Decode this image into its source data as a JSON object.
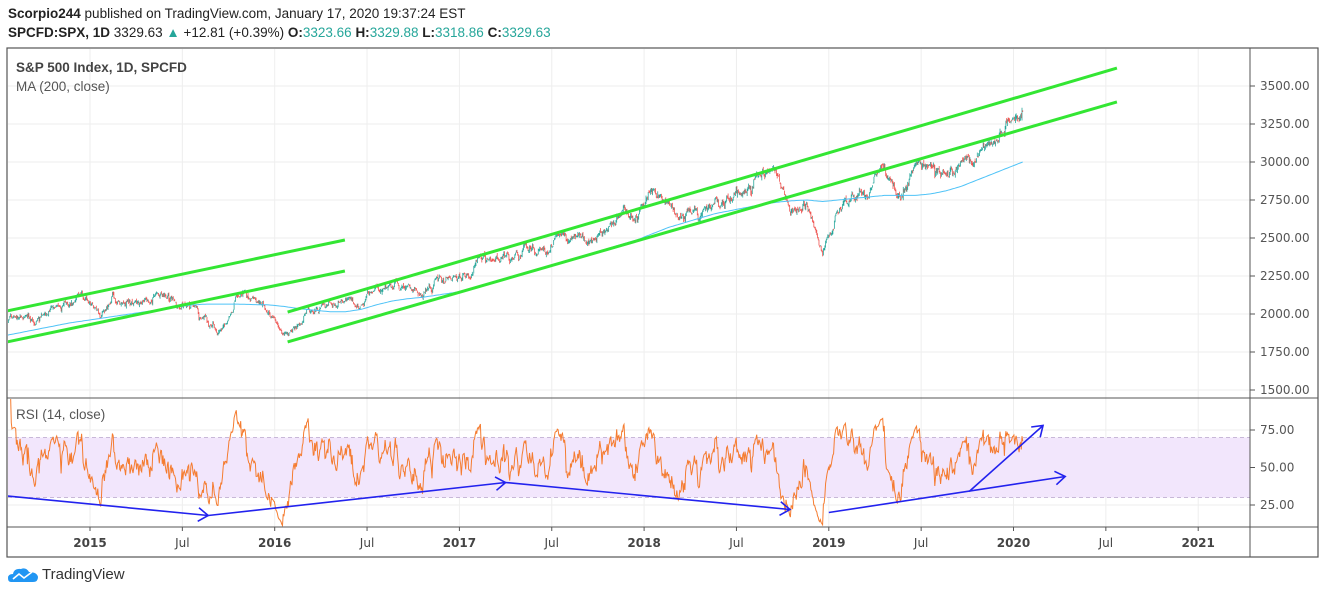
{
  "header": {
    "author": "Scorpio244",
    "published_text": "published on TradingView.com, January 17, 2020 19:37:24 EST",
    "symbol": "SPCFD:SPX, 1D",
    "last": "3329.63",
    "change": "+12.81 (+0.39%)",
    "o_label": "O:",
    "o": "3323.66",
    "h_label": "H:",
    "h": "3329.88",
    "l_label": "L:",
    "l": "3318.86",
    "c_label": "C:",
    "c": "3329.63"
  },
  "footer": {
    "brand": "TradingView"
  },
  "colors": {
    "up": "#26a69a",
    "down": "#ef5350",
    "ma": "#4fc3f7",
    "rsi": "#f57c30",
    "rsi_band": "#f2e6fc",
    "trend": "#33e633",
    "arrow": "#2222ee"
  },
  "chart_data": {
    "type": "candlestick",
    "title": "S&P 500 Index, 1D, SPCFD",
    "ma_label": "MA (200, close)",
    "rsi_label": "RSI (14, close)",
    "ylim": [
      1450,
      3700
    ],
    "yticks": [
      "3500.00",
      "3250.00",
      "3000.00",
      "2750.00",
      "2500.00",
      "2250.00",
      "2000.00",
      "1750.00",
      "1500.00"
    ],
    "ytick_values": [
      3500,
      3250,
      3000,
      2750,
      2500,
      2250,
      2000,
      1750,
      1500
    ],
    "rsi_ticks": [
      "75.00",
      "50.00",
      "25.00"
    ],
    "rsi_tick_values": [
      75,
      50,
      25
    ],
    "rsi_band": [
      30,
      70
    ],
    "xticks": [
      {
        "label": "2015",
        "date": 2015.0,
        "bold": true
      },
      {
        "label": "Jul",
        "date": 2015.5
      },
      {
        "label": "2016",
        "date": 2016.0,
        "bold": true
      },
      {
        "label": "Jul",
        "date": 2016.5
      },
      {
        "label": "2017",
        "date": 2017.0,
        "bold": true
      },
      {
        "label": "Jul",
        "date": 2017.5
      },
      {
        "label": "2018",
        "date": 2018.0,
        "bold": true
      },
      {
        "label": "Jul",
        "date": 2018.5
      },
      {
        "label": "2019",
        "date": 2019.0,
        "bold": true
      },
      {
        "label": "Jul",
        "date": 2019.5
      },
      {
        "label": "2020",
        "date": 2020.0,
        "bold": true
      },
      {
        "label": "Jul",
        "date": 2020.5
      },
      {
        "label": "2021",
        "date": 2021.0,
        "bold": true
      }
    ],
    "monthly_close_start": 2014.55,
    "monthly_close": [
      1930,
      2003,
      1972,
      2018,
      2068,
      2059,
      1995,
      2105,
      2068,
      2086,
      2107,
      2063,
      2104,
      1900,
      1920,
      2079,
      2080,
      2044,
      1890,
      1932,
      2060,
      2065,
      2097,
      2099,
      2174,
      2171,
      2168,
      2126,
      2199,
      2239,
      2279,
      2364,
      2363,
      2384,
      2412,
      2423,
      2470,
      2472,
      2519,
      2575,
      2648,
      2674,
      2860,
      2714,
      2641,
      2648,
      2705,
      2718,
      2816,
      2902,
      2914,
      2712,
      2760,
      2400,
      2704,
      2784,
      2834,
      2946,
      2752,
      2942,
      2980,
      2926,
      2977,
      3038,
      3141,
      3231,
      3329.63
    ],
    "ma200_start": 2014.55,
    "ma200_monthly": [
      1860,
      1880,
      1900,
      1920,
      1940,
      1955,
      1970,
      1985,
      2000,
      2015,
      2030,
      2045,
      2060,
      2065,
      2065,
      2065,
      2062,
      2060,
      2050,
      2035,
      2025,
      2015,
      2015,
      2030,
      2060,
      2085,
      2100,
      2110,
      2125,
      2140,
      2160,
      2190,
      2220,
      2250,
      2280,
      2310,
      2340,
      2370,
      2400,
      2430,
      2460,
      2490,
      2530,
      2570,
      2600,
      2630,
      2660,
      2680,
      2700,
      2720,
      2735,
      2745,
      2750,
      2740,
      2750,
      2760,
      2770,
      2780,
      2780,
      2780,
      2790,
      2810,
      2840,
      2880,
      2920,
      2960,
      3000
    ],
    "trend_lines": [
      {
        "from": [
          2014.55,
          2020
        ],
        "to": [
          2016.38,
          2487
        ]
      },
      {
        "from": [
          2014.55,
          1816
        ],
        "to": [
          2016.38,
          2283
        ]
      },
      {
        "from": [
          2016.07,
          2013
        ],
        "to": [
          2020.56,
          3618
        ]
      },
      {
        "from": [
          2016.07,
          1816
        ],
        "to": [
          2020.56,
          3395
        ]
      }
    ],
    "rsi_arrows": [
      {
        "from": [
          2014.55,
          31
        ],
        "to": [
          2015.64,
          18
        ]
      },
      {
        "from": [
          2015.64,
          18
        ],
        "to": [
          2017.25,
          40
        ]
      },
      {
        "from": [
          2017.25,
          40
        ],
        "to": [
          2018.79,
          22
        ]
      },
      {
        "from": [
          2019.0,
          20
        ],
        "to": [
          2020.28,
          44
        ]
      },
      {
        "from": [
          2019.76,
          34
        ],
        "to": [
          2020.16,
          78
        ]
      }
    ]
  }
}
